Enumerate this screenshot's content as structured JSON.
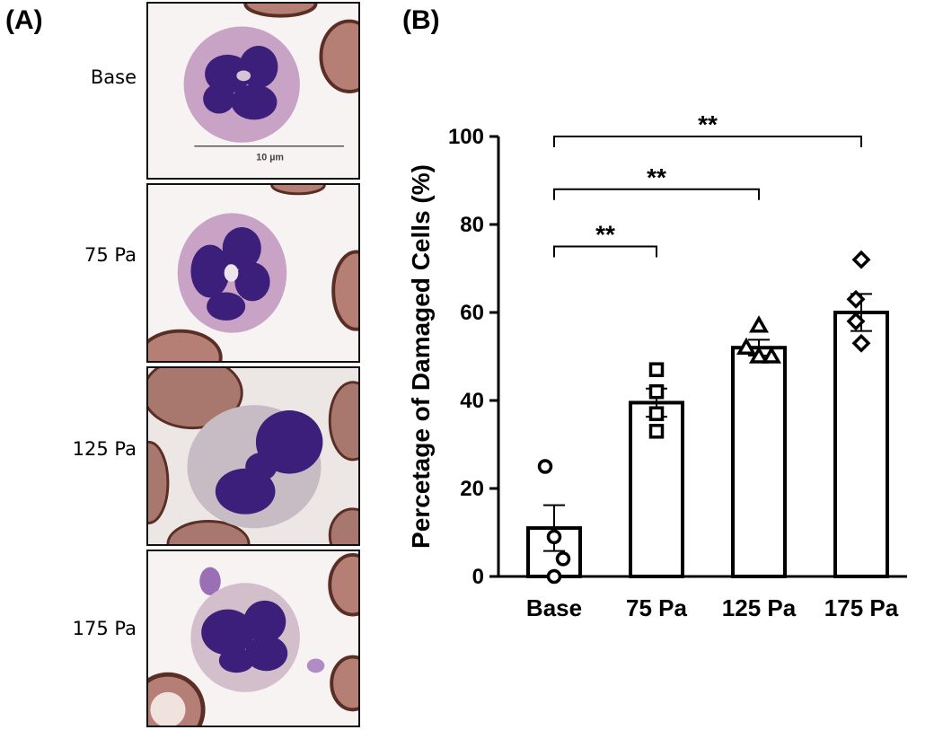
{
  "panel_a": {
    "label": "(A)",
    "rows": [
      {
        "label": "Base",
        "scale_bar_text": "10 µm"
      },
      {
        "label": "75 Pa"
      },
      {
        "label": "125 Pa"
      },
      {
        "label": "175 Pa"
      }
    ]
  },
  "panel_b": {
    "label": "(B)"
  },
  "colors": {
    "nucleus": "#3b1f7a",
    "cytoplasm": "#c9a3c5",
    "rbc": "#b57f76",
    "rbc_rim": "#5a2e24",
    "background": "#f4f1f1",
    "axis": "#000000"
  },
  "chart_data": {
    "type": "bar",
    "title": "",
    "xlabel": "",
    "ylabel": "Percetage of Damaged Cells (%)",
    "categories": [
      "Base",
      "75 Pa",
      "125 Pa",
      "175 Pa"
    ],
    "values": [
      11,
      39.5,
      52,
      60
    ],
    "sem": [
      5.2,
      3.2,
      1.8,
      4.2
    ],
    "ylim": [
      0,
      100
    ],
    "yticks": [
      0,
      20,
      40,
      60,
      80,
      100
    ],
    "points": [
      {
        "marker": "circle",
        "values": [
          25,
          9,
          4,
          0
        ]
      },
      {
        "marker": "square",
        "values": [
          47,
          42,
          37,
          33
        ]
      },
      {
        "marker": "triangle",
        "values": [
          57,
          52,
          50,
          50
        ]
      },
      {
        "marker": "diamond",
        "values": [
          72,
          63,
          58,
          53
        ]
      }
    ],
    "comparisons": [
      {
        "from": "Base",
        "to": "75 Pa",
        "label": "**",
        "y": 75
      },
      {
        "from": "Base",
        "to": "125 Pa",
        "label": "**",
        "y": 88
      },
      {
        "from": "Base",
        "to": "175 Pa",
        "label": "**",
        "y": 100
      }
    ],
    "grid": false
  }
}
